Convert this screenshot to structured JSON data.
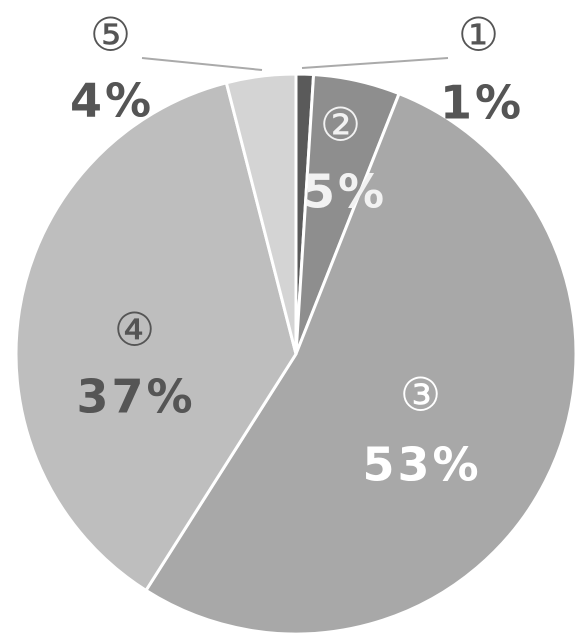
{
  "chart_data": {
    "type": "pie",
    "categories": [
      "①",
      "②",
      "③",
      "④",
      "⑤"
    ],
    "values": [
      1,
      5,
      53,
      37,
      4
    ],
    "value_labels": [
      "1%",
      "5%",
      "53%",
      "37%",
      "4%"
    ],
    "colors": [
      "#5a5a5a",
      "#8e8e8e",
      "#a8a8a8",
      "#bebebe",
      "#d4d4d4"
    ]
  }
}
